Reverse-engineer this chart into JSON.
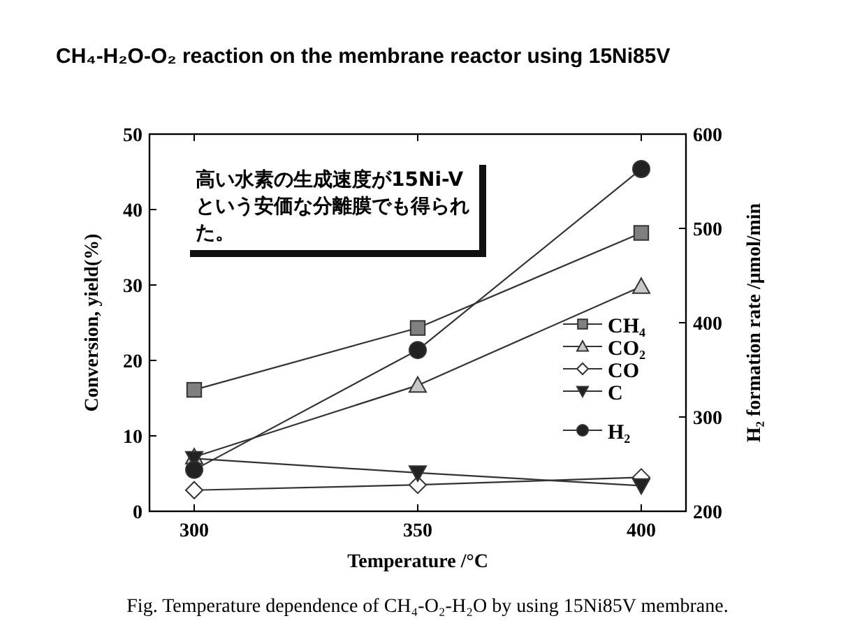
{
  "chart_data": {
    "type": "line",
    "title": "CH₄-H₂O-O₂ reaction on the membrane reactor using 15Ni85V",
    "xlabel": "Temperature /°C",
    "ylabel": "Conversion, yield(%)",
    "y2label": "H₂ formation rate /μmol/min",
    "x": [
      300,
      350,
      400
    ],
    "xlim": [
      290,
      410
    ],
    "xticks": [
      300,
      350,
      400
    ],
    "ylim": [
      0,
      50
    ],
    "yticks": [
      0,
      10,
      20,
      30,
      40,
      50
    ],
    "y2lim": [
      200,
      600
    ],
    "y2ticks": [
      200,
      300,
      400,
      500,
      600
    ],
    "legend": "right",
    "series": [
      {
        "name": "CH₄",
        "color": "#808080",
        "marker": "square",
        "values": [
          16.1,
          24.3,
          36.9
        ]
      },
      {
        "name": "CO₂",
        "color": "#c8c8c8",
        "marker": "triangle",
        "values": [
          7.2,
          16.7,
          29.8
        ]
      },
      {
        "name": "CO",
        "color": "#ffffff",
        "marker": "diamond",
        "values": [
          2.8,
          3.5,
          4.5
        ]
      },
      {
        "name": "C",
        "color": "#222222",
        "marker": "triangle-down",
        "values": [
          7.0,
          5.1,
          3.4
        ]
      },
      {
        "name": "H₂",
        "color": "#222222",
        "marker": "circle",
        "axis": "y2",
        "values": [
          244,
          371,
          563
        ]
      }
    ],
    "annotations": [
      "高い水素の生成速度が15Ni-Vという安価な分離膜でも得られた。",
      "Fig. Temperature dependence of CH₄-O₂-H₂O by using 15Ni85V membrane."
    ]
  }
}
